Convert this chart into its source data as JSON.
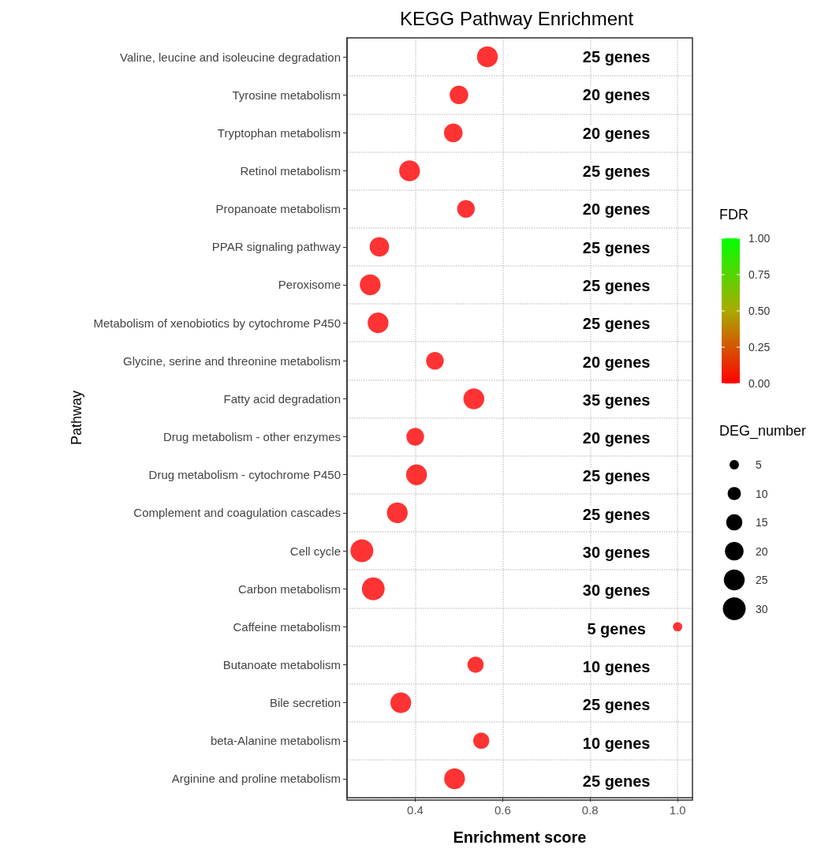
{
  "chart_data": {
    "type": "bubble",
    "title": "KEGG Pathway Enrichment",
    "xlabel": "Enrichment score",
    "ylabel": "Pathway",
    "clabel": "FDR",
    "legend_title": "DEG_number",
    "categories": [
      "Valine, leucine and isoleucine degradation",
      "Tyrosine metabolism",
      "Tryptophan metabolism",
      "Retinol metabolism",
      "Propanoate metabolism",
      "PPAR signaling pathway",
      "Peroxisome",
      "Metabolism of xenobiotics by cytochrome P450",
      "Glycine, serine and threonine metabolism",
      "Fatty acid degradation",
      "Drug metabolism - other enzymes",
      "Drug metabolism - cytochrome P450",
      "Complement and coagulation cascades",
      "Cell cycle",
      "Carbon metabolism",
      "Caffeine metabolism",
      "Butanoate metabolism",
      "Bile secretion",
      "beta-Alanine metabolism",
      "Arginine and proline metabolism"
    ],
    "values": [
      0.565,
      0.5,
      0.487,
      0.387,
      0.516,
      0.318,
      0.297,
      0.315,
      0.445,
      0.534,
      0.4,
      0.403,
      0.359,
      0.278,
      0.304,
      1.0,
      0.538,
      0.367,
      0.551,
      0.49
    ],
    "sizes": [
      25,
      20,
      20,
      25,
      18,
      22,
      25,
      25,
      18,
      25,
      18,
      25,
      25,
      30,
      30,
      5,
      15,
      25,
      15,
      25
    ],
    "cvalues": [
      0,
      0,
      0,
      0,
      0,
      0,
      0,
      0,
      0,
      0,
      0,
      0,
      0,
      0,
      0,
      0,
      0,
      0,
      0,
      0
    ],
    "size_legend": [
      5,
      10,
      15,
      20,
      25,
      30
    ],
    "clim": [
      0,
      1
    ],
    "cticks": [
      {
        "value": 0,
        "label": "0.00"
      },
      {
        "value": 0.25,
        "label": "0.25"
      },
      {
        "value": 0.5,
        "label": "0.50"
      },
      {
        "value": 0.75,
        "label": "0.75"
      },
      {
        "value": 1,
        "label": "1.00"
      }
    ],
    "xlim": [
      0.244,
      1.034
    ],
    "xticks": [
      0.4,
      0.6,
      0.8,
      {
        "value": 1.0,
        "label": "1.0"
      }
    ],
    "grid": true,
    "orientation": "horizontal",
    "annotations": [
      "25 genes",
      "20 genes",
      "20 genes",
      "25 genes",
      "20 genes",
      "25 genes",
      "25 genes",
      "25 genes",
      "20 genes",
      "35 genes",
      "20 genes",
      "25 genes",
      "25 genes",
      "30 genes",
      "30 genes",
      "5 genes",
      "10 genes",
      "25 genes",
      "10 genes",
      "25 genes"
    ]
  }
}
